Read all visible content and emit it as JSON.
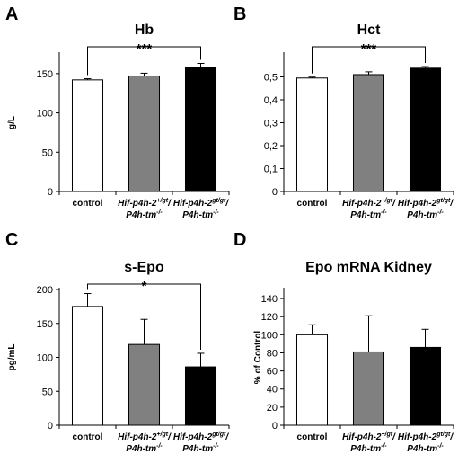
{
  "chart_data": [
    {
      "panel": "A",
      "type": "bar",
      "title": "Hb",
      "ylabel": "g/L",
      "ylim": [
        0,
        175
      ],
      "yticks": [
        0,
        50,
        100,
        150
      ],
      "ytick_labels": [
        "0",
        "50",
        "100",
        "150"
      ],
      "categories": [
        {
          "line1": "control",
          "line1_sup": "",
          "line1_tail": "",
          "line2": "",
          "line2_sup": ""
        },
        {
          "line1": "Hif-p4h-2",
          "line1_sup": "+/gt",
          "line1_tail": "/",
          "line2": "P4h-tm",
          "line2_sup": "-/-"
        },
        {
          "line1": "Hif-p4h-2",
          "line1_sup": "gt/gt",
          "line1_tail": "/",
          "line2": "P4h-tm",
          "line2_sup": "-/-"
        }
      ],
      "values": [
        142,
        147,
        158
      ],
      "errors": [
        1.5,
        3.5,
        5
      ],
      "bar_colors": [
        "#ffffff",
        "#808080",
        "#000000"
      ],
      "significance": {
        "from": 0,
        "to": 2,
        "label": "***"
      }
    },
    {
      "panel": "B",
      "type": "bar",
      "title": "Hct",
      "ylabel": "",
      "ylim": [
        0,
        0.6
      ],
      "yticks": [
        0,
        0.1,
        0.2,
        0.3,
        0.4,
        0.5
      ],
      "ytick_labels": [
        "0",
        "0,1",
        "0,2",
        "0,3",
        "0,4",
        "0,5"
      ],
      "categories": [
        {
          "line1": "control",
          "line1_sup": "",
          "line1_tail": "",
          "line2": "",
          "line2_sup": ""
        },
        {
          "line1": "Hif-p4h-2",
          "line1_sup": "+/gt",
          "line1_tail": "/",
          "line2": "P4h-tm",
          "line2_sup": "-/-"
        },
        {
          "line1": "Hif-p4h-2",
          "line1_sup": "gt/gt",
          "line1_tail": "/",
          "line2": "P4h-tm",
          "line2_sup": "-/-"
        }
      ],
      "values": [
        0.495,
        0.51,
        0.538
      ],
      "errors": [
        0.004,
        0.012,
        0.007
      ],
      "bar_colors": [
        "#ffffff",
        "#808080",
        "#000000"
      ],
      "significance": {
        "from": 0,
        "to": 2,
        "label": "***"
      }
    },
    {
      "panel": "C",
      "type": "bar",
      "title": "s-Epo",
      "ylabel": "pg/mL",
      "ylim": [
        0,
        200
      ],
      "yticks": [
        0,
        50,
        100,
        150,
        200
      ],
      "ytick_labels": [
        "0",
        "50",
        "100",
        "150",
        "200"
      ],
      "categories": [
        {
          "line1": "control",
          "line1_sup": "",
          "line1_tail": "",
          "line2": "",
          "line2_sup": ""
        },
        {
          "line1": "Hif-p4h-2",
          "line1_sup": "+/gt",
          "line1_tail": "/",
          "line2": "P4h-tm",
          "line2_sup": "-/-"
        },
        {
          "line1": "Hif-p4h-2",
          "line1_sup": "gt/gt",
          "line1_tail": "/",
          "line2": "P4h-tm",
          "line2_sup": "-/-"
        }
      ],
      "values": [
        175,
        119,
        86
      ],
      "errors": [
        19,
        37,
        20
      ],
      "bar_colors": [
        "#ffffff",
        "#808080",
        "#000000"
      ],
      "significance": {
        "from": 0,
        "to": 2,
        "label": "*"
      }
    },
    {
      "panel": "D",
      "type": "bar",
      "title": "Epo mRNA Kidney",
      "ylabel": "% of Control",
      "ylim": [
        0,
        150
      ],
      "yticks": [
        0,
        20,
        40,
        60,
        80,
        100,
        120,
        140
      ],
      "ytick_labels": [
        "0",
        "20",
        "40",
        "60",
        "80",
        "100",
        "120",
        "140"
      ],
      "categories": [
        {
          "line1": "control",
          "line1_sup": "",
          "line1_tail": "",
          "line2": "",
          "line2_sup": ""
        },
        {
          "line1": "Hif-p4h-2",
          "line1_sup": "+/gt",
          "line1_tail": "/",
          "line2": "P4h-tm",
          "line2_sup": "-/-"
        },
        {
          "line1": "Hif-p4h-2",
          "line1_sup": "gt/gt",
          "line1_tail": "/",
          "line2": "P4h-tm",
          "line2_sup": "-/-"
        }
      ],
      "values": [
        100,
        81,
        86
      ],
      "errors": [
        11,
        40,
        20
      ],
      "bar_colors": [
        "#ffffff",
        "#808080",
        "#000000"
      ],
      "significance": null
    }
  ]
}
